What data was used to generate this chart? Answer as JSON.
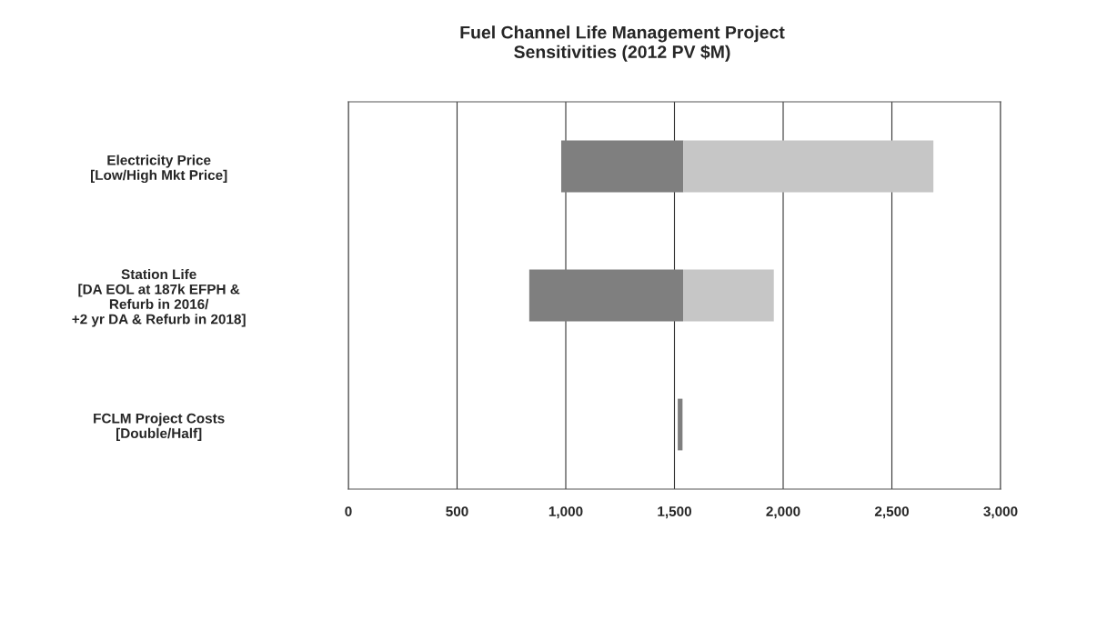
{
  "chart_data": {
    "type": "bar",
    "orientation": "horizontal",
    "title": "Fuel Channel Life Management Project\nSensitivities (2012 PV $M)",
    "categories": [
      "Electricity Price\n[Low/High Mkt Price]",
      "Station Life\n[DA EOL at 187k EFPH &\nRefurb in 2016/\n+2 yr DA & Refurb in 2018]",
      "FCLM Project Costs\n[Double/Half]"
    ],
    "series": [
      {
        "color": "#7f7f7f",
        "base": [
          979,
          832,
          1515
        ],
        "values": [
          562,
          708,
          22
        ]
      },
      {
        "color": "#c6c6c6",
        "base": [
          1541,
          1540,
          null
        ],
        "values": [
          1150,
          417,
          null
        ]
      }
    ],
    "xlim": [
      0,
      3000
    ],
    "xticks": [
      0,
      500,
      {
        "value": 1000,
        "label": "1,000"
      },
      {
        "value": 1500,
        "label": "1,500"
      },
      {
        "value": 2000,
        "label": "2,000"
      },
      {
        "value": 2500,
        "label": "2,500"
      },
      {
        "value": 3000,
        "label": "3,000"
      }
    ],
    "grid": "x",
    "legend": false
  }
}
